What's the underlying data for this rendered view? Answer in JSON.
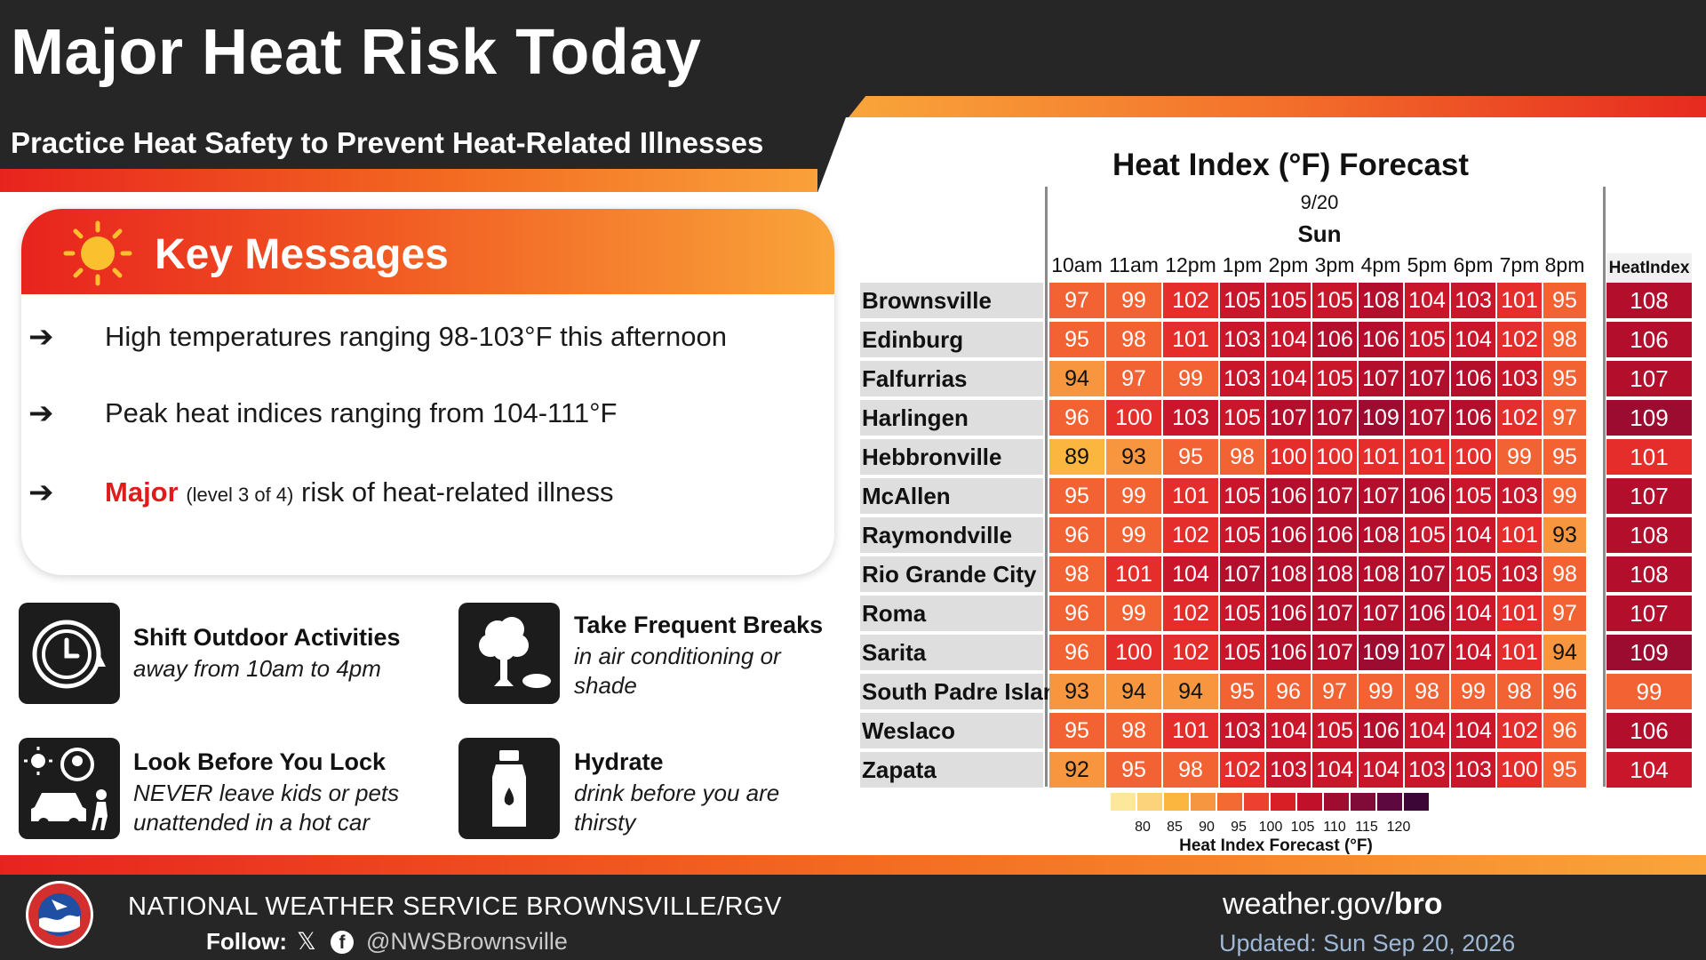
{
  "header": {
    "title": "Major Heat Risk Today",
    "subtitle": "Practice Heat Safety to Prevent Heat-Related Illnesses"
  },
  "key_messages": {
    "title": "Key Messages",
    "icon": "sun-icon",
    "items": [
      {
        "text": "High temperatures ranging 98-103°F this afternoon"
      },
      {
        "text": "Peak heat indices ranging from 104-111°F"
      },
      {
        "highlight": "Major",
        "detail": "(level 3 of 4)",
        "text": "risk of heat-related illness"
      }
    ]
  },
  "tips": [
    {
      "icon": "clock-icon",
      "title": "Shift Outdoor Activities",
      "desc": "away from 10am to 4pm"
    },
    {
      "icon": "tree-shade-icon",
      "title": "Take Frequent Breaks",
      "desc": "in air conditioning or shade"
    },
    {
      "icon": "car-kids-icon",
      "title": "Look Before You Lock",
      "desc": "NEVER leave kids or pets unattended in a hot car"
    },
    {
      "icon": "water-bottle-icon",
      "title": "Hydrate",
      "desc": "drink before you are thirsty"
    }
  ],
  "chart_data": {
    "type": "table",
    "title": "Heat Index (°F) Forecast",
    "date": "9/20",
    "day": "Sun",
    "hours": [
      "10am",
      "11am",
      "12pm",
      "1pm",
      "2pm",
      "3pm",
      "4pm",
      "5pm",
      "6pm",
      "7pm",
      "8pm"
    ],
    "max_column_label": "HeatIndex",
    "rows": [
      {
        "city": "Brownsville",
        "values": [
          97,
          99,
          102,
          105,
          105,
          105,
          108,
          104,
          103,
          101,
          95
        ],
        "max": 108
      },
      {
        "city": "Edinburg",
        "values": [
          95,
          98,
          101,
          103,
          104,
          106,
          106,
          105,
          104,
          102,
          98
        ],
        "max": 106
      },
      {
        "city": "Falfurrias",
        "values": [
          94,
          97,
          99,
          103,
          104,
          105,
          107,
          107,
          106,
          103,
          95
        ],
        "max": 107
      },
      {
        "city": "Harlingen",
        "values": [
          96,
          100,
          103,
          105,
          107,
          107,
          109,
          107,
          106,
          102,
          97
        ],
        "max": 109
      },
      {
        "city": "Hebbronville",
        "values": [
          89,
          93,
          95,
          98,
          100,
          100,
          101,
          101,
          100,
          99,
          95
        ],
        "max": 101
      },
      {
        "city": "McAllen",
        "values": [
          95,
          99,
          101,
          105,
          106,
          107,
          107,
          106,
          105,
          103,
          99
        ],
        "max": 107
      },
      {
        "city": "Raymondville",
        "values": [
          96,
          99,
          102,
          105,
          106,
          106,
          108,
          105,
          104,
          101,
          93
        ],
        "max": 108
      },
      {
        "city": "Rio Grande City",
        "values": [
          98,
          101,
          104,
          107,
          108,
          108,
          108,
          107,
          105,
          103,
          98
        ],
        "max": 108
      },
      {
        "city": "Roma",
        "values": [
          96,
          99,
          102,
          105,
          106,
          107,
          107,
          106,
          104,
          101,
          97
        ],
        "max": 107
      },
      {
        "city": "Sarita",
        "values": [
          96,
          100,
          102,
          105,
          106,
          107,
          109,
          107,
          104,
          101,
          94
        ],
        "max": 109
      },
      {
        "city": "South Padre Island",
        "values": [
          93,
          94,
          94,
          95,
          96,
          97,
          99,
          98,
          99,
          98,
          96
        ],
        "max": 99
      },
      {
        "city": "Weslaco",
        "values": [
          95,
          98,
          101,
          103,
          104,
          105,
          106,
          104,
          104,
          102,
          96
        ],
        "max": 106
      },
      {
        "city": "Zapata",
        "values": [
          92,
          95,
          98,
          102,
          103,
          104,
          104,
          103,
          103,
          100,
          95
        ],
        "max": 104
      }
    ],
    "scale": {
      "title": "Heat Index Forecast (°F)",
      "labels": [
        "80",
        "85",
        "90",
        "95",
        "100",
        "105",
        "110",
        "115",
        "120"
      ],
      "colors": [
        "#fde79b",
        "#fcd27a",
        "#fbb640",
        "#f79640",
        "#f36a33",
        "#ee4030",
        "#d81f26",
        "#c0102a",
        "#a00c30",
        "#800a38",
        "#5e0840",
        "#3c0636"
      ]
    }
  },
  "footer": {
    "agency": "NATIONAL WEATHER SERVICE BROWNSVILLE/RGV",
    "follow_label": "Follow:",
    "x_icon": "x-icon",
    "fb_icon": "facebook-icon",
    "handle": "@NWSBrownsville",
    "site_prefix": "weather.gov/",
    "site_suffix": "bro",
    "updated": "Updated: Sun Sep 20, 2026"
  }
}
